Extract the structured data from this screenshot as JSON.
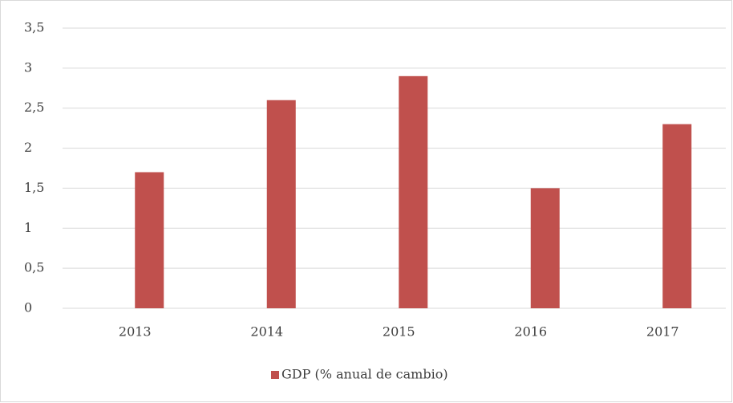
{
  "chart_data": {
    "type": "bar",
    "categories": [
      "2013",
      "2014",
      "2015",
      "2016",
      "2017"
    ],
    "series": [
      {
        "name": "GDP (% anual de cambio)",
        "color": "#c0504d",
        "values": [
          1.7,
          2.6,
          2.9,
          1.5,
          2.3
        ]
      }
    ],
    "ylim": [
      0,
      3.5
    ],
    "yticks": [
      0,
      {
        "value": 0.5,
        "label": "0,5"
      },
      1,
      {
        "value": 1.5,
        "label": "1,5"
      },
      2,
      {
        "value": 2.5,
        "label": "2,5"
      },
      3,
      {
        "value": 3.5,
        "label": "3,5"
      }
    ],
    "grid": true,
    "legend": "bottom"
  }
}
